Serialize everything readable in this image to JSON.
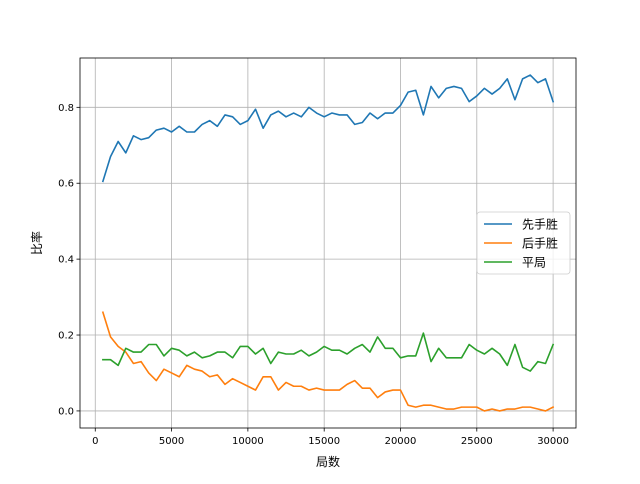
{
  "chart_data": {
    "type": "line",
    "title": "",
    "xlabel": "局数",
    "ylabel": "比率",
    "xlim": [
      -1000,
      31500
    ],
    "ylim": [
      -0.045,
      0.93
    ],
    "x_ticks": [
      0,
      5000,
      10000,
      15000,
      20000,
      25000,
      30000
    ],
    "x_tick_labels": [
      "0",
      "5000",
      "10000",
      "15000",
      "20000",
      "25000",
      "30000"
    ],
    "y_ticks": [
      0.0,
      0.2,
      0.4,
      0.6,
      0.8
    ],
    "y_tick_labels": [
      "0.0",
      "0.2",
      "0.4",
      "0.6",
      "0.8"
    ],
    "grid": true,
    "legend_position": "center-right",
    "x": [
      500,
      1000,
      1500,
      2000,
      2500,
      3000,
      3500,
      4000,
      4500,
      5000,
      5500,
      6000,
      6500,
      7000,
      7500,
      8000,
      8500,
      9000,
      9500,
      10000,
      10500,
      11000,
      11500,
      12000,
      12500,
      13000,
      13500,
      14000,
      14500,
      15000,
      15500,
      16000,
      16500,
      17000,
      17500,
      18000,
      18500,
      19000,
      19500,
      20000,
      20500,
      21000,
      21500,
      22000,
      22500,
      23000,
      23500,
      24000,
      24500,
      25000,
      25500,
      26000,
      26500,
      27000,
      27500,
      28000,
      28500,
      29000,
      29500,
      30000
    ],
    "series": [
      {
        "name": "先手胜",
        "color": "#1f77b4",
        "values": [
          0.605,
          0.67,
          0.71,
          0.68,
          0.725,
          0.715,
          0.72,
          0.74,
          0.745,
          0.735,
          0.75,
          0.735,
          0.735,
          0.755,
          0.765,
          0.75,
          0.78,
          0.775,
          0.755,
          0.765,
          0.795,
          0.745,
          0.78,
          0.79,
          0.775,
          0.785,
          0.775,
          0.8,
          0.785,
          0.775,
          0.785,
          0.78,
          0.78,
          0.755,
          0.76,
          0.785,
          0.77,
          0.785,
          0.785,
          0.805,
          0.84,
          0.845,
          0.78,
          0.855,
          0.825,
          0.85,
          0.855,
          0.85,
          0.815,
          0.83,
          0.85,
          0.835,
          0.85,
          0.875,
          0.82,
          0.875,
          0.885,
          0.865,
          0.875,
          0.815
        ]
      },
      {
        "name": "后手胜",
        "color": "#ff7f0e",
        "values": [
          0.26,
          0.195,
          0.17,
          0.155,
          0.125,
          0.13,
          0.1,
          0.08,
          0.11,
          0.1,
          0.09,
          0.12,
          0.11,
          0.105,
          0.09,
          0.095,
          0.07,
          0.085,
          0.075,
          0.065,
          0.055,
          0.09,
          0.09,
          0.055,
          0.075,
          0.065,
          0.065,
          0.055,
          0.06,
          0.055,
          0.055,
          0.055,
          0.07,
          0.08,
          0.06,
          0.06,
          0.035,
          0.05,
          0.055,
          0.055,
          0.015,
          0.01,
          0.015,
          0.015,
          0.01,
          0.005,
          0.005,
          0.01,
          0.01,
          0.01,
          0.0,
          0.005,
          0.0,
          0.005,
          0.005,
          0.01,
          0.01,
          0.005,
          0.0,
          0.01
        ]
      },
      {
        "name": "平局",
        "color": "#2ca02c",
        "values": [
          0.135,
          0.135,
          0.12,
          0.165,
          0.155,
          0.155,
          0.175,
          0.175,
          0.145,
          0.165,
          0.16,
          0.145,
          0.155,
          0.14,
          0.145,
          0.155,
          0.155,
          0.14,
          0.17,
          0.17,
          0.15,
          0.165,
          0.125,
          0.155,
          0.15,
          0.15,
          0.16,
          0.145,
          0.155,
          0.17,
          0.16,
          0.16,
          0.15,
          0.165,
          0.175,
          0.155,
          0.195,
          0.165,
          0.165,
          0.14,
          0.145,
          0.145,
          0.205,
          0.13,
          0.165,
          0.14,
          0.14,
          0.14,
          0.175,
          0.16,
          0.15,
          0.165,
          0.15,
          0.12,
          0.175,
          0.115,
          0.105,
          0.13,
          0.125,
          0.175
        ]
      }
    ]
  }
}
